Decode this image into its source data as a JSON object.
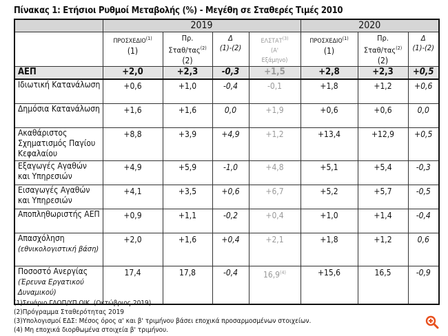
{
  "title": "Πίνακας 1: Ετήσιοι Ρυθμοί Μεταβολής (%) - Μεγέθη σε Σταθερές Τιμές 2010",
  "years": [
    "2019",
    "2020"
  ],
  "headers": [
    {
      "l1": "ΠΡΟΣΧΕΔΙΟ",
      "sup": "(1)",
      "l2": "(1)"
    },
    {
      "l1": "Πρ.",
      "l2": "Σταθ/τας",
      "sup": "(2)",
      "l3": "(2)"
    },
    {
      "l1": "Δ",
      "l2": "(1)-(2)"
    },
    {
      "l1": "ΕΛΣΤΑΤ",
      "sup": "(3)",
      "l2": "(Α'",
      "l3": "Εξάμηνο)"
    },
    {
      "l1": "ΠΡΟΣΧΕΔΙΟ",
      "sup": "(1)",
      "l2": "(1)"
    },
    {
      "l1": "Πρ.",
      "l2": "Σταθ/τας",
      "sup": "(2)",
      "l3": "(2)"
    },
    {
      "l1": "Δ",
      "l2": "(1)-(2)"
    }
  ],
  "rows": [
    {
      "label": "ΑΕΠ",
      "values": [
        "+2,0",
        "+2,3",
        "-0,3",
        "+1,5",
        "+2,8",
        "+2,3",
        "+0,5"
      ]
    },
    {
      "label": "Ιδιωτική Κατανάλωση",
      "values": [
        "+0,6",
        "+1,0",
        "-0,4",
        "-0,1",
        "+1,8",
        "+1,2",
        "+0,6"
      ]
    },
    {
      "label": "Δημόσια Κατανάλωση",
      "values": [
        "+1,6",
        "+1,6",
        "0,0",
        "+1,9",
        "+0,6",
        "+0,6",
        "0,0"
      ]
    },
    {
      "label": "Ακαθάριστος Σχηματισμός Παγίου Κεφαλαίου",
      "values": [
        "+8,8",
        "+3,9",
        "+4,9",
        "+1,2",
        "+13,4",
        "+12,9",
        "+0,5"
      ]
    },
    {
      "label": "Εξαγωγές Αγαθών και Υπηρεσιών",
      "values": [
        "+4,9",
        "+5,9",
        "-1,0",
        "+4,8",
        "+5,1",
        "+5,4",
        "-0,3"
      ]
    },
    {
      "label": "Εισαγωγές Αγαθών και Υπηρεσιών",
      "values": [
        "+4,1",
        "+3,5",
        "+0,6",
        "+6,7",
        "+5,2",
        "+5,7",
        "-0,5"
      ]
    },
    {
      "label": "Αποπληθωριστής ΑΕΠ",
      "values": [
        "+0,9",
        "+1,1",
        "-0,2",
        "+0,4",
        "+1,0",
        "+1,4",
        "-0,4"
      ]
    },
    {
      "label": "Απασχόληση",
      "sublabel": "(εθνικολογιστική βάση)",
      "values": [
        "+2,0",
        "+1,6",
        "+0,4",
        "+2,1",
        "+1,8",
        "+1,2",
        "0,6"
      ]
    },
    {
      "label": "Ποσοστό Ανεργίας",
      "sublabel": "(Έρευνα Εργατικού Δυναμικού)",
      "values": [
        "17,4",
        "17,8",
        "-0,4",
        "16,9",
        "+15,6",
        "16,5",
        "-0,9"
      ],
      "elstat_sup": "(4)"
    }
  ],
  "notes": [
    "(1)Σενάριο ΓΔΟΠ/ΥΠ.ΟΙΚ. (Οκτώβριος 2019)",
    "(2)Πρόγραμμα Σταθερότητας 2019",
    "(3)Υπολογισμοί ΕΔΣ: Μέσος όρος α' και β' τριμήνου βάσει εποχικά προσαρμοσμένων στοιχείων.",
    "(4) Μη εποχικά διορθωμένα στοιχεία β' τριμήνου."
  ],
  "zoom_icon": "zoom-in-icon",
  "accent": "#e8501e"
}
